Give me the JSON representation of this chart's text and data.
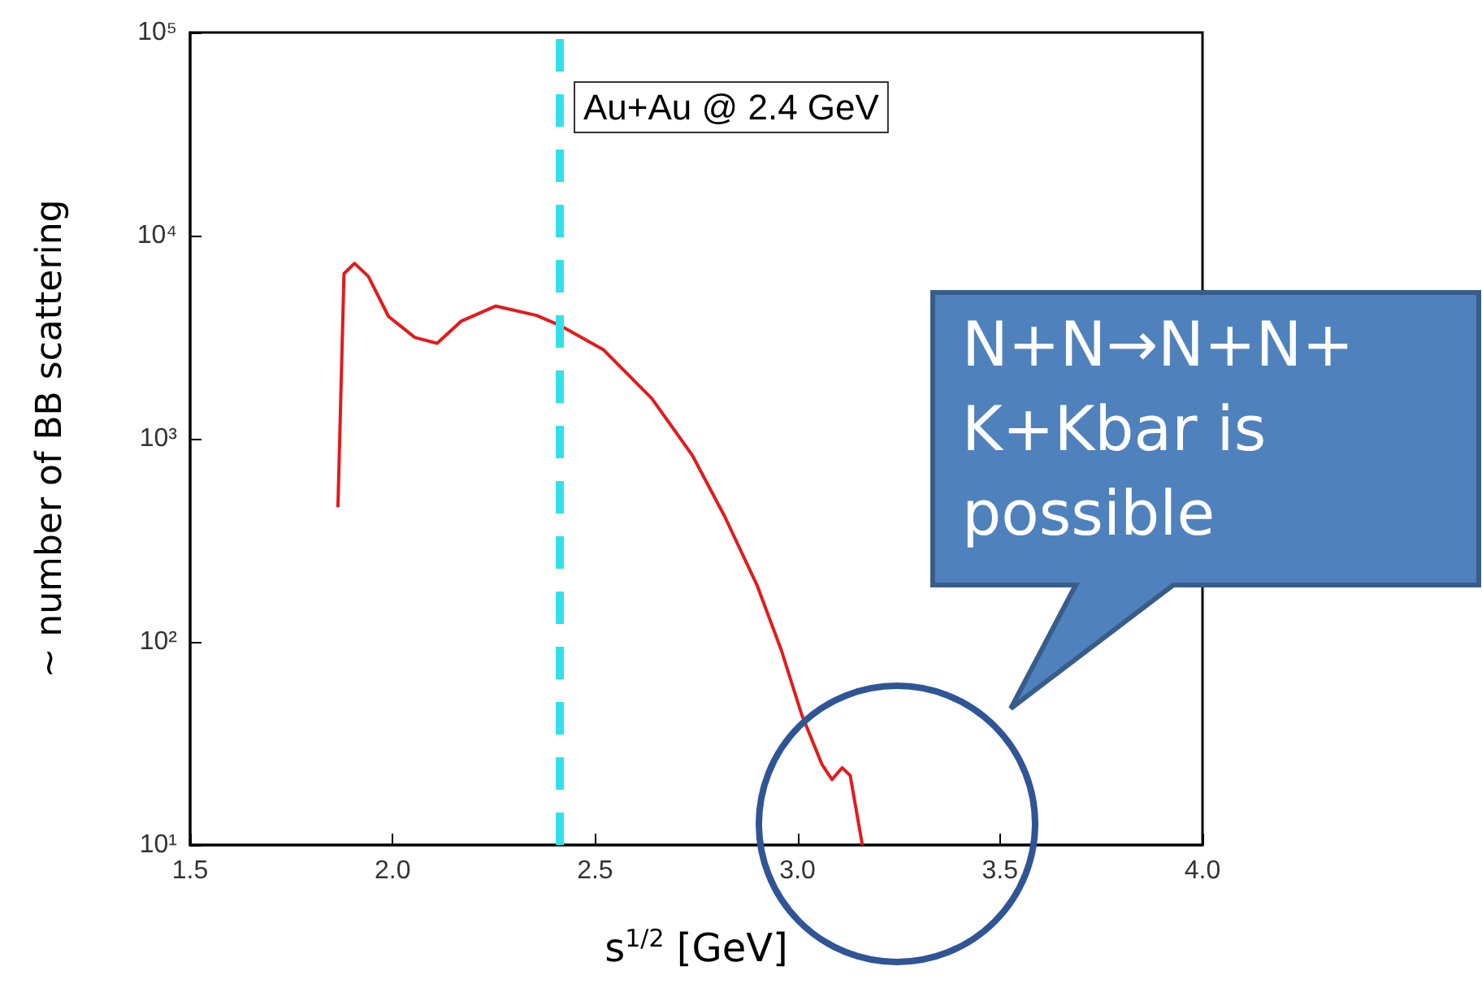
{
  "chart_data": {
    "type": "line",
    "xlabel": "s$^{1/2}$ [GeV]",
    "ylabel": "~ number of BB scattering",
    "log": "y",
    "xlim": [
      1.5,
      4.0
    ],
    "xticks": [
      {
        "value": 1.5,
        "label": "1.5"
      },
      {
        "value": 2,
        "label": "2.0"
      },
      {
        "value": 2.5,
        "label": "2.5"
      },
      {
        "value": 3,
        "label": "3.0"
      },
      {
        "value": 3.5,
        "label": "3.5"
      },
      {
        "value": 4,
        "label": "4.0"
      }
    ],
    "ylim": [
      10,
      100000
    ],
    "yticks": [
      {
        "value": 10,
        "label": "10¹"
      },
      {
        "value": 100,
        "label": "10²"
      },
      {
        "value": 1000,
        "label": "10³"
      },
      {
        "value": 10000,
        "label": "10⁴"
      },
      {
        "value": 100000,
        "label": "10⁵"
      }
    ],
    "grid": false,
    "marker": "none",
    "line_style": "solid",
    "series": [
      {
        "color": "#e41a1c",
        "x": [
          1.865,
          1.88,
          1.906,
          1.94,
          1.99,
          2.055,
          2.11,
          2.17,
          2.255,
          2.355,
          2.415,
          2.52,
          2.64,
          2.74,
          2.82,
          2.9,
          2.96,
          3.01,
          3.06,
          3.085,
          3.11,
          3.13,
          3.16
        ],
        "values": [
          460,
          6500,
          7300,
          6300,
          4000,
          3150,
          2950,
          3800,
          4500,
          4050,
          3600,
          2750,
          1580,
          830,
          415,
          190,
          91,
          44,
          25,
          21,
          24,
          22,
          10
        ]
      }
    ],
    "ref_lines": [
      {
        "axis": "x",
        "value": 2.41,
        "color": "#33e0ea",
        "line_style": "dashed"
      }
    ],
    "annotations": [
      "Au+Au @ 2.4 GeV",
      "N+N→N+N+K+Kbar is possible"
    ]
  }
}
